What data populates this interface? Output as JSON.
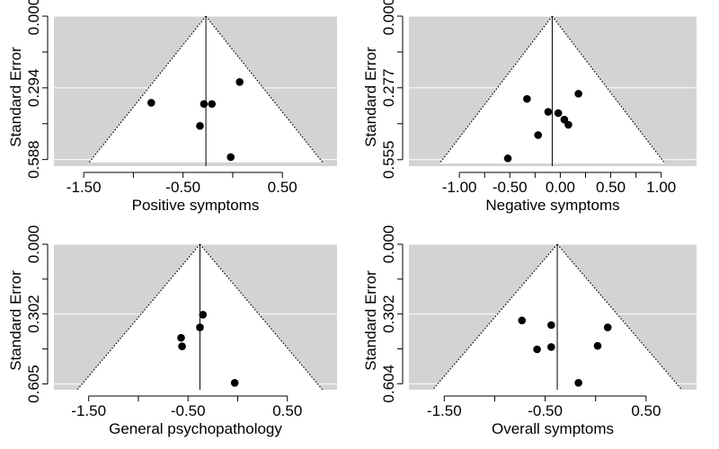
{
  "colors": {
    "panel_background": "#d3d3d3",
    "funnel_fill": "#ffffff",
    "gridline": "#ffffff",
    "point": "#000000",
    "line": "#000000"
  },
  "chart_data": [
    {
      "type": "scatter",
      "xlabel": "Positive symptoms",
      "ylabel": "Standard Error",
      "x_ticks": [
        -1.5,
        -0.5,
        0.5
      ],
      "x_tick_labels": [
        "-1.50",
        "-0.50",
        "0.50"
      ],
      "y_ticks": [
        0,
        0.294,
        0.588
      ],
      "y_tick_labels": [
        "0.000",
        "0.294",
        "0.588"
      ],
      "xlim": [
        -1.8,
        1.05
      ],
      "ylim": [
        0.615,
        0
      ],
      "center": -0.27,
      "se_max": 0.6,
      "points": [
        {
          "x": -0.82,
          "y": 0.355
        },
        {
          "x": -0.29,
          "y": 0.36
        },
        {
          "x": -0.21,
          "y": 0.36
        },
        {
          "x": -0.33,
          "y": 0.45
        },
        {
          "x": 0.07,
          "y": 0.27
        },
        {
          "x": -0.02,
          "y": 0.578
        }
      ]
    },
    {
      "type": "scatter",
      "xlabel": "Negative symptoms",
      "ylabel": "Standard Error",
      "x_ticks": [
        -1.0,
        -0.5,
        0.0,
        0.5,
        1.0
      ],
      "x_tick_labels": [
        "-1.00",
        "-0.50",
        "0.00",
        "0.50",
        "1.00"
      ],
      "y_ticks": [
        0,
        0.277,
        0.555
      ],
      "y_tick_labels": [
        "0.000",
        "0.277",
        "0.555"
      ],
      "xlim": [
        -1.5,
        1.35
      ],
      "ylim": [
        0.58,
        0
      ],
      "center": -0.08,
      "se_max": 0.57,
      "points": [
        {
          "x": -0.33,
          "y": 0.32
        },
        {
          "x": -0.12,
          "y": 0.37
        },
        {
          "x": -0.02,
          "y": 0.375
        },
        {
          "x": 0.04,
          "y": 0.4
        },
        {
          "x": 0.08,
          "y": 0.42
        },
        {
          "x": 0.18,
          "y": 0.3
        },
        {
          "x": -0.22,
          "y": 0.46
        },
        {
          "x": -0.52,
          "y": 0.55
        }
      ]
    },
    {
      "type": "scatter",
      "xlabel": "General psychopathology",
      "ylabel": "Standard Error",
      "x_ticks": [
        -1.5,
        -0.5,
        0.5
      ],
      "x_tick_labels": [
        "-1.50",
        "-0.50",
        "0.50"
      ],
      "y_ticks": [
        0,
        0.302,
        0.605
      ],
      "y_tick_labels": [
        "0.000",
        "0.302",
        "0.605"
      ],
      "xlim": [
        -1.85,
        1.0
      ],
      "ylim": [
        0.63,
        0
      ],
      "center": -0.38,
      "se_max": 0.63,
      "points": [
        {
          "x": -0.35,
          "y": 0.305
        },
        {
          "x": -0.38,
          "y": 0.36
        },
        {
          "x": -0.57,
          "y": 0.405
        },
        {
          "x": -0.56,
          "y": 0.442
        },
        {
          "x": -0.03,
          "y": 0.6
        }
      ]
    },
    {
      "type": "scatter",
      "xlabel": "Overall symptoms",
      "ylabel": "Standard Error",
      "x_ticks": [
        -1.5,
        -0.5,
        0.5
      ],
      "x_tick_labels": [
        "-1.50",
        "-0.50",
        "0.50"
      ],
      "y_ticks": [
        0,
        0.302,
        0.604
      ],
      "y_tick_labels": [
        "0.000",
        "0.302",
        "0.604"
      ],
      "xlim": [
        -1.85,
        1.0
      ],
      "ylim": [
        0.63,
        0
      ],
      "center": -0.38,
      "se_max": 0.63,
      "points": [
        {
          "x": -0.73,
          "y": 0.33
        },
        {
          "x": -0.44,
          "y": 0.35
        },
        {
          "x": -0.58,
          "y": 0.455
        },
        {
          "x": -0.44,
          "y": 0.445
        },
        {
          "x": 0.12,
          "y": 0.36
        },
        {
          "x": 0.02,
          "y": 0.44
        },
        {
          "x": -0.17,
          "y": 0.6
        }
      ]
    }
  ]
}
